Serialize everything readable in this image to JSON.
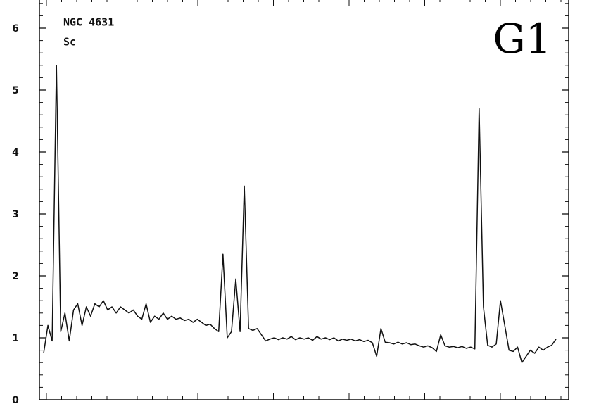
{
  "chart_data": {
    "type": "line",
    "annotations": [
      "NGC 4631",
      "Sc",
      "G1"
    ],
    "values": [
      0.75,
      1.2,
      0.95,
      5.4,
      1.1,
      1.4,
      0.95,
      1.45,
      1.55,
      1.2,
      1.5,
      1.35,
      1.55,
      1.5,
      1.6,
      1.45,
      1.5,
      1.4,
      1.5,
      1.45,
      1.4,
      1.45,
      1.35,
      1.3,
      1.55,
      1.25,
      1.35,
      1.3,
      1.4,
      1.3,
      1.35,
      1.3,
      1.32,
      1.28,
      1.3,
      1.25,
      1.3,
      1.25,
      1.2,
      1.22,
      1.15,
      1.1,
      2.35,
      1.0,
      1.1,
      1.95,
      1.1,
      3.45,
      1.15,
      1.12,
      1.15,
      1.05,
      0.95,
      0.98,
      1.0,
      0.97,
      1.0,
      0.98,
      1.02,
      0.97,
      1.0,
      0.98,
      1.0,
      0.96,
      1.02,
      0.98,
      1.0,
      0.97,
      1.0,
      0.95,
      0.98,
      0.96,
      0.98,
      0.95,
      0.97,
      0.94,
      0.96,
      0.92,
      0.7,
      1.15,
      0.93,
      0.92,
      0.9,
      0.93,
      0.9,
      0.92,
      0.89,
      0.9,
      0.87,
      0.85,
      0.87,
      0.84,
      0.78,
      1.05,
      0.87,
      0.85,
      0.86,
      0.84,
      0.86,
      0.83,
      0.85,
      0.82,
      4.7,
      1.5,
      0.88,
      0.85,
      0.9,
      1.6,
      1.2,
      0.8,
      0.78,
      0.85,
      0.6,
      0.7,
      0.8,
      0.75,
      0.85,
      0.8,
      0.85,
      0.88,
      0.98
    ],
    "color": "#111111",
    "ylim": [
      0,
      6.45
    ],
    "yticks": [
      0,
      1,
      2,
      3,
      4,
      5,
      6
    ]
  }
}
